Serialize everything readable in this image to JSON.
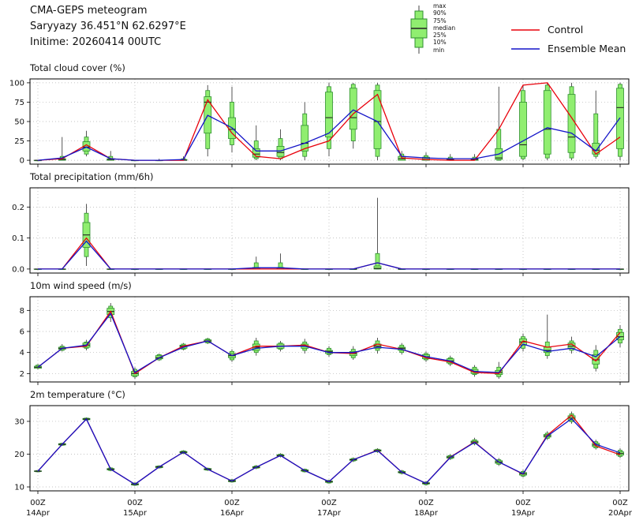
{
  "header": {
    "title": "CMA-GEPS meteogram",
    "location": "Saryyazy 36.451°N 62.6297°E",
    "inittime": "Initime: 20260414 00UTC"
  },
  "legend": {
    "box_stat_labels": [
      "max",
      "90%",
      "75%",
      "median",
      "25%",
      "10%",
      "min"
    ],
    "control_label": "Control",
    "ensemble_label": "Ensemble Mean",
    "colors": {
      "control": "#e8000b",
      "ensemble": "#1414c8",
      "box_fill": "#90ee70",
      "box_edge": "#2f8f2f",
      "whisker": "#444444",
      "median": "#222222"
    }
  },
  "x_axis": {
    "steps": 25,
    "step_hours": 6,
    "day_tick_indices": [
      0,
      4,
      8,
      12,
      16,
      20,
      24
    ],
    "tick_labels": [
      {
        "hour": "00Z",
        "day": "14Apr"
      },
      {
        "hour": "00Z",
        "day": "15Apr"
      },
      {
        "hour": "00Z",
        "day": "16Apr"
      },
      {
        "hour": "00Z",
        "day": "17Apr"
      },
      {
        "hour": "00Z",
        "day": "18Apr"
      },
      {
        "hour": "00Z",
        "day": "19Apr"
      },
      {
        "hour": "00Z",
        "day": "20Apr"
      }
    ]
  },
  "chart_data": [
    {
      "type": "boxplot-line",
      "title": "Total cloud cover (%)",
      "ylim": [
        -5,
        105
      ],
      "yticks": [
        0,
        25,
        50,
        75,
        100
      ],
      "ytick_labels": [
        "0",
        "25",
        "50",
        "75",
        "100"
      ],
      "boxes": [
        [
          0,
          0,
          0,
          0,
          0,
          0,
          0
        ],
        [
          0,
          0,
          0,
          1,
          2,
          5,
          30
        ],
        [
          5,
          8,
          12,
          17,
          24,
          30,
          38
        ],
        [
          0,
          0,
          0,
          1,
          2,
          5,
          12
        ],
        [
          0,
          0,
          0,
          0,
          0,
          0,
          0
        ],
        [
          0,
          0,
          0,
          0,
          0,
          0,
          2
        ],
        [
          0,
          0,
          0,
          0,
          1,
          2,
          5
        ],
        [
          5,
          15,
          35,
          75,
          82,
          90,
          97
        ],
        [
          10,
          20,
          28,
          40,
          55,
          75,
          95
        ],
        [
          0,
          2,
          4,
          8,
          15,
          25,
          45
        ],
        [
          0,
          2,
          5,
          10,
          18,
          28,
          40
        ],
        [
          0,
          5,
          12,
          22,
          45,
          60,
          75
        ],
        [
          5,
          15,
          30,
          55,
          88,
          95,
          100
        ],
        [
          15,
          25,
          40,
          55,
          93,
          98,
          100
        ],
        [
          0,
          5,
          15,
          50,
          90,
          97,
          100
        ],
        [
          0,
          0,
          0,
          2,
          5,
          8,
          12
        ],
        [
          0,
          0,
          0,
          1,
          4,
          6,
          10
        ],
        [
          0,
          0,
          0,
          1,
          2,
          4,
          8
        ],
        [
          0,
          0,
          0,
          1,
          2,
          4,
          8
        ],
        [
          0,
          0,
          1,
          3,
          15,
          40,
          95
        ],
        [
          0,
          2,
          5,
          20,
          75,
          90,
          97
        ],
        [
          0,
          3,
          8,
          40,
          90,
          97,
          100
        ],
        [
          0,
          3,
          10,
          30,
          85,
          95,
          100
        ],
        [
          2,
          5,
          8,
          13,
          22,
          60,
          90
        ],
        [
          0,
          5,
          15,
          68,
          93,
          98,
          100
        ]
      ],
      "control": [
        0,
        2,
        20,
        2,
        0,
        0,
        0,
        78,
        35,
        5,
        2,
        15,
        25,
        60,
        85,
        3,
        1,
        0,
        0,
        40,
        97,
        100,
        55,
        8,
        30
      ],
      "ensemble": [
        0,
        3,
        17,
        2,
        0,
        0,
        1,
        58,
        42,
        12,
        12,
        22,
        35,
        65,
        50,
        5,
        3,
        2,
        2,
        8,
        25,
        42,
        35,
        12,
        55
      ]
    },
    {
      "type": "boxplot-line",
      "title": "Total precipitation (mm/6h)",
      "ylim": [
        -0.013,
        0.262
      ],
      "yticks": [
        0,
        0.1,
        0.2
      ],
      "ytick_labels": [
        "0.0",
        "0.1",
        "0.2"
      ],
      "boxes": [
        [
          0,
          0,
          0,
          0,
          0,
          0,
          0
        ],
        [
          0,
          0,
          0,
          0,
          0,
          0,
          0
        ],
        [
          0.01,
          0.04,
          0.07,
          0.11,
          0.15,
          0.18,
          0.21
        ],
        [
          0,
          0,
          0,
          0,
          0,
          0,
          0
        ],
        [
          0,
          0,
          0,
          0,
          0,
          0,
          0
        ],
        [
          0,
          0,
          0,
          0,
          0,
          0,
          0
        ],
        [
          0,
          0,
          0,
          0,
          0,
          0,
          0
        ],
        [
          0,
          0,
          0,
          0,
          0,
          0,
          0
        ],
        [
          0,
          0,
          0,
          0,
          0,
          0,
          0
        ],
        [
          0,
          0,
          0,
          0,
          0.005,
          0.02,
          0.04
        ],
        [
          0,
          0,
          0,
          0,
          0.005,
          0.02,
          0.05
        ],
        [
          0,
          0,
          0,
          0,
          0,
          0,
          0
        ],
        [
          0,
          0,
          0,
          0,
          0,
          0,
          0
        ],
        [
          0,
          0,
          0,
          0,
          0,
          0,
          0
        ],
        [
          0,
          0,
          0,
          0.002,
          0.01,
          0.05,
          0.23
        ],
        [
          0,
          0,
          0,
          0,
          0,
          0,
          0
        ],
        [
          0,
          0,
          0,
          0,
          0,
          0,
          0
        ],
        [
          0,
          0,
          0,
          0,
          0,
          0,
          0
        ],
        [
          0,
          0,
          0,
          0,
          0,
          0,
          0
        ],
        [
          0,
          0,
          0,
          0,
          0,
          0,
          0
        ],
        [
          0,
          0,
          0,
          0,
          0,
          0,
          0
        ],
        [
          0,
          0,
          0,
          0,
          0,
          0,
          0
        ],
        [
          0,
          0,
          0,
          0,
          0,
          0,
          0
        ],
        [
          0,
          0,
          0,
          0,
          0,
          0,
          0
        ],
        [
          0,
          0,
          0,
          0,
          0,
          0,
          0
        ]
      ],
      "control": [
        0,
        0,
        0.1,
        0,
        0,
        0,
        0,
        0,
        0,
        0,
        0,
        0,
        0,
        0,
        0.02,
        0,
        0,
        0,
        0,
        0,
        0,
        0,
        0,
        0,
        0
      ],
      "ensemble": [
        0,
        0,
        0.09,
        0,
        0,
        0,
        0,
        0,
        0,
        0.004,
        0.004,
        0,
        0,
        0,
        0.02,
        0,
        0,
        0,
        0,
        0,
        0,
        0,
        0,
        0,
        0
      ]
    },
    {
      "type": "boxplot-line",
      "title": "10m wind speed (m/s)",
      "ylim": [
        1.2,
        9.3
      ],
      "yticks": [
        2,
        4,
        6,
        8
      ],
      "ytick_labels": [
        "2",
        "4",
        "6",
        "8"
      ],
      "boxes": [
        [
          2.4,
          2.5,
          2.5,
          2.6,
          2.7,
          2.8,
          2.9
        ],
        [
          4.1,
          4.2,
          4.3,
          4.4,
          4.5,
          4.6,
          4.8
        ],
        [
          4.2,
          4.4,
          4.5,
          4.7,
          4.9,
          5.0,
          5.2
        ],
        [
          6.9,
          7.3,
          7.6,
          7.9,
          8.2,
          8.4,
          8.7
        ],
        [
          1.5,
          1.7,
          1.8,
          2.0,
          2.2,
          2.4,
          2.6
        ],
        [
          3.2,
          3.3,
          3.4,
          3.5,
          3.7,
          3.8,
          3.9
        ],
        [
          4.2,
          4.3,
          4.4,
          4.6,
          4.7,
          4.8,
          4.9
        ],
        [
          4.8,
          4.9,
          5.0,
          5.1,
          5.2,
          5.3,
          5.4
        ],
        [
          3.1,
          3.3,
          3.5,
          3.7,
          3.9,
          4.1,
          4.3
        ],
        [
          3.7,
          4.0,
          4.2,
          4.5,
          4.8,
          5.1,
          5.4
        ],
        [
          4.1,
          4.3,
          4.4,
          4.6,
          4.8,
          4.9,
          5.1
        ],
        [
          3.9,
          4.2,
          4.4,
          4.6,
          4.8,
          5.0,
          5.3
        ],
        [
          3.6,
          3.8,
          3.9,
          4.1,
          4.2,
          4.4,
          4.6
        ],
        [
          3.3,
          3.5,
          3.7,
          3.9,
          4.1,
          4.3,
          4.6
        ],
        [
          3.9,
          4.2,
          4.4,
          4.6,
          4.8,
          5.1,
          5.4
        ],
        [
          3.8,
          4.0,
          4.2,
          4.4,
          4.5,
          4.7,
          4.9
        ],
        [
          3.1,
          3.3,
          3.4,
          3.6,
          3.8,
          3.9,
          4.1
        ],
        [
          2.7,
          2.9,
          3.0,
          3.2,
          3.4,
          3.5,
          3.7
        ],
        [
          1.7,
          1.9,
          2.0,
          2.2,
          2.4,
          2.6,
          2.8
        ],
        [
          1.5,
          1.7,
          1.9,
          2.1,
          2.3,
          2.6,
          3.1
        ],
        [
          4.1,
          4.4,
          4.7,
          5.0,
          5.3,
          5.5,
          5.8
        ],
        [
          3.4,
          3.7,
          4.0,
          4.2,
          4.5,
          5.0,
          7.6
        ],
        [
          3.9,
          4.2,
          4.4,
          4.6,
          4.9,
          5.1,
          5.5
        ],
        [
          2.2,
          2.5,
          2.9,
          3.3,
          3.8,
          4.2,
          4.7
        ],
        [
          4.5,
          4.9,
          5.2,
          5.5,
          5.9,
          6.2,
          6.6
        ]
      ],
      "control": [
        2.6,
        4.4,
        4.6,
        7.9,
        2.0,
        3.5,
        4.6,
        5.1,
        3.7,
        4.6,
        4.6,
        4.7,
        4.0,
        3.9,
        4.8,
        4.3,
        3.5,
        3.1,
        2.1,
        2.0,
        5.1,
        4.5,
        4.8,
        3.2,
        5.9
      ],
      "ensemble": [
        2.6,
        4.4,
        4.7,
        7.7,
        2.1,
        3.5,
        4.5,
        5.1,
        3.7,
        4.4,
        4.6,
        4.6,
        4.0,
        4.0,
        4.5,
        4.3,
        3.6,
        3.2,
        2.2,
        2.1,
        4.8,
        4.1,
        4.4,
        3.6,
        5.5
      ]
    },
    {
      "type": "boxplot-line",
      "title": "2m temperature (°C)",
      "ylim": [
        8.8,
        34.8
      ],
      "yticks": [
        10,
        20,
        30
      ],
      "ytick_labels": [
        "10",
        "20",
        "30"
      ],
      "boxes": [
        [
          14.5,
          14.6,
          14.7,
          14.8,
          14.9,
          15.0,
          15.1
        ],
        [
          22.5,
          22.7,
          22.8,
          23.0,
          23.2,
          23.3,
          23.5
        ],
        [
          30.2,
          30.4,
          30.5,
          30.7,
          30.9,
          31.0,
          31.2
        ],
        [
          14.8,
          15.0,
          15.2,
          15.4,
          15.6,
          15.8,
          16.0
        ],
        [
          10.3,
          10.5,
          10.6,
          10.8,
          11.0,
          11.2,
          11.4
        ],
        [
          15.6,
          15.8,
          15.9,
          16.1,
          16.3,
          16.4,
          16.6
        ],
        [
          20.0,
          20.2,
          20.4,
          20.6,
          20.8,
          21.0,
          21.2
        ],
        [
          14.9,
          15.1,
          15.2,
          15.4,
          15.6,
          15.7,
          15.9
        ],
        [
          11.3,
          11.5,
          11.6,
          11.8,
          12.0,
          12.2,
          12.4
        ],
        [
          15.4,
          15.7,
          15.8,
          16.0,
          16.2,
          16.4,
          16.7
        ],
        [
          19.0,
          19.3,
          19.4,
          19.6,
          19.8,
          20.0,
          20.3
        ],
        [
          14.4,
          14.6,
          14.8,
          15.0,
          15.2,
          15.4,
          15.6
        ],
        [
          11.0,
          11.2,
          11.4,
          11.6,
          11.8,
          12.0,
          12.2
        ],
        [
          17.6,
          17.9,
          18.1,
          18.3,
          18.5,
          18.7,
          19.0
        ],
        [
          20.4,
          20.7,
          20.9,
          21.1,
          21.3,
          21.5,
          21.8
        ],
        [
          13.8,
          14.1,
          14.3,
          14.5,
          14.7,
          14.9,
          15.2
        ],
        [
          10.4,
          10.7,
          10.9,
          11.1,
          11.3,
          11.5,
          11.8
        ],
        [
          18.2,
          18.6,
          18.8,
          19.1,
          19.4,
          19.6,
          20.0
        ],
        [
          22.7,
          23.1,
          23.4,
          23.7,
          24.0,
          24.4,
          25.0
        ],
        [
          16.4,
          16.9,
          17.2,
          17.6,
          18.0,
          18.3,
          18.8
        ],
        [
          12.9,
          13.3,
          13.6,
          14.0,
          14.4,
          14.7,
          15.2
        ],
        [
          24.3,
          24.8,
          25.2,
          25.6,
          26.0,
          26.4,
          27.0
        ],
        [
          29.3,
          29.9,
          30.4,
          31.0,
          31.7,
          32.3,
          33.0
        ],
        [
          21.4,
          21.9,
          22.3,
          22.8,
          23.3,
          23.8,
          24.4
        ],
        [
          18.8,
          19.3,
          19.7,
          20.2,
          20.7,
          21.2,
          21.8
        ]
      ],
      "control": [
        14.8,
        23.0,
        30.7,
        15.4,
        10.8,
        16.1,
        20.6,
        15.4,
        11.8,
        16.0,
        19.6,
        15.0,
        11.6,
        18.3,
        21.2,
        14.5,
        11.1,
        19.1,
        23.7,
        17.6,
        13.9,
        25.8,
        31.9,
        22.5,
        19.8
      ],
      "ensemble": [
        14.8,
        23.0,
        30.7,
        15.4,
        10.8,
        16.1,
        20.6,
        15.4,
        11.8,
        16.0,
        19.6,
        15.0,
        11.6,
        18.3,
        21.1,
        14.5,
        11.1,
        19.0,
        23.6,
        17.6,
        14.0,
        25.5,
        30.8,
        23.0,
        20.4
      ]
    }
  ]
}
